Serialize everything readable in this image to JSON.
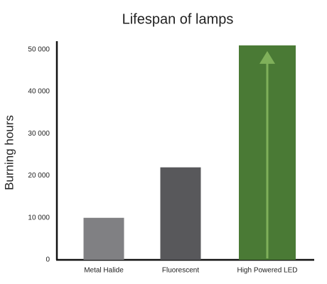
{
  "chart_data": {
    "type": "bar",
    "title": "Lifespan of lamps",
    "y_label": "Burning hours",
    "categories": [
      "Metal Halide",
      "Fluorescent",
      "High Powered LED"
    ],
    "values": [
      10000,
      22000,
      51000
    ],
    "colors": [
      "#808083",
      "#58585b",
      "#4a7a35"
    ],
    "ylim": [
      0,
      52000
    ],
    "yticks": [
      0,
      {
        "value": 10000,
        "label": "10 000"
      },
      {
        "value": 20000,
        "label": "20 000"
      },
      {
        "value": 30000,
        "label": "30 000"
      },
      {
        "value": 40000,
        "label": "40 000"
      },
      {
        "value": 50000,
        "label": "50 000"
      }
    ],
    "grid": false
  }
}
